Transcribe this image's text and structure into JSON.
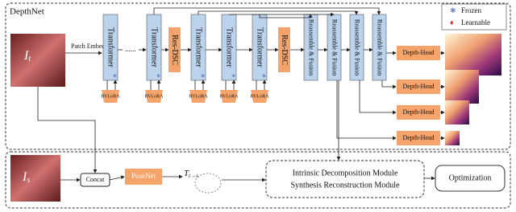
{
  "title": "DepthNet",
  "legend": {
    "frozen": "Frozen",
    "learnable": "Learnable"
  },
  "inputs": {
    "target": "I",
    "target_sub": "t",
    "source": "I",
    "source_sub": "s"
  },
  "patch_embed": "Patch Embed",
  "ellipsis": "......",
  "encoder_blocks": [
    "Transformer",
    "Transformer",
    "Res-DSC",
    "Transformer",
    "Transformer",
    "Transformer",
    "Res-DSC"
  ],
  "adapters": [
    "RVLoRA",
    "RVLoRA",
    "RVLoRA",
    "RVLoRA",
    "RVLoRA"
  ],
  "decoder_blocks": [
    "Reassemble & Fusion",
    "Reassemble & Fusion",
    "Reassemble & Fusion",
    "Reassemble & Fusion"
  ],
  "heads": [
    "Depth-Head",
    "Depth-Head",
    "Depth-Head",
    "Depth-Head"
  ],
  "concat": "Concat",
  "posenet": "PoseNet",
  "pose": {
    "symbol": "T",
    "sub": "t→s"
  },
  "modules": [
    "Intrinsic Decomposition Module",
    "Synthesis Reconstruction Module"
  ],
  "optimization": "Optimization"
}
